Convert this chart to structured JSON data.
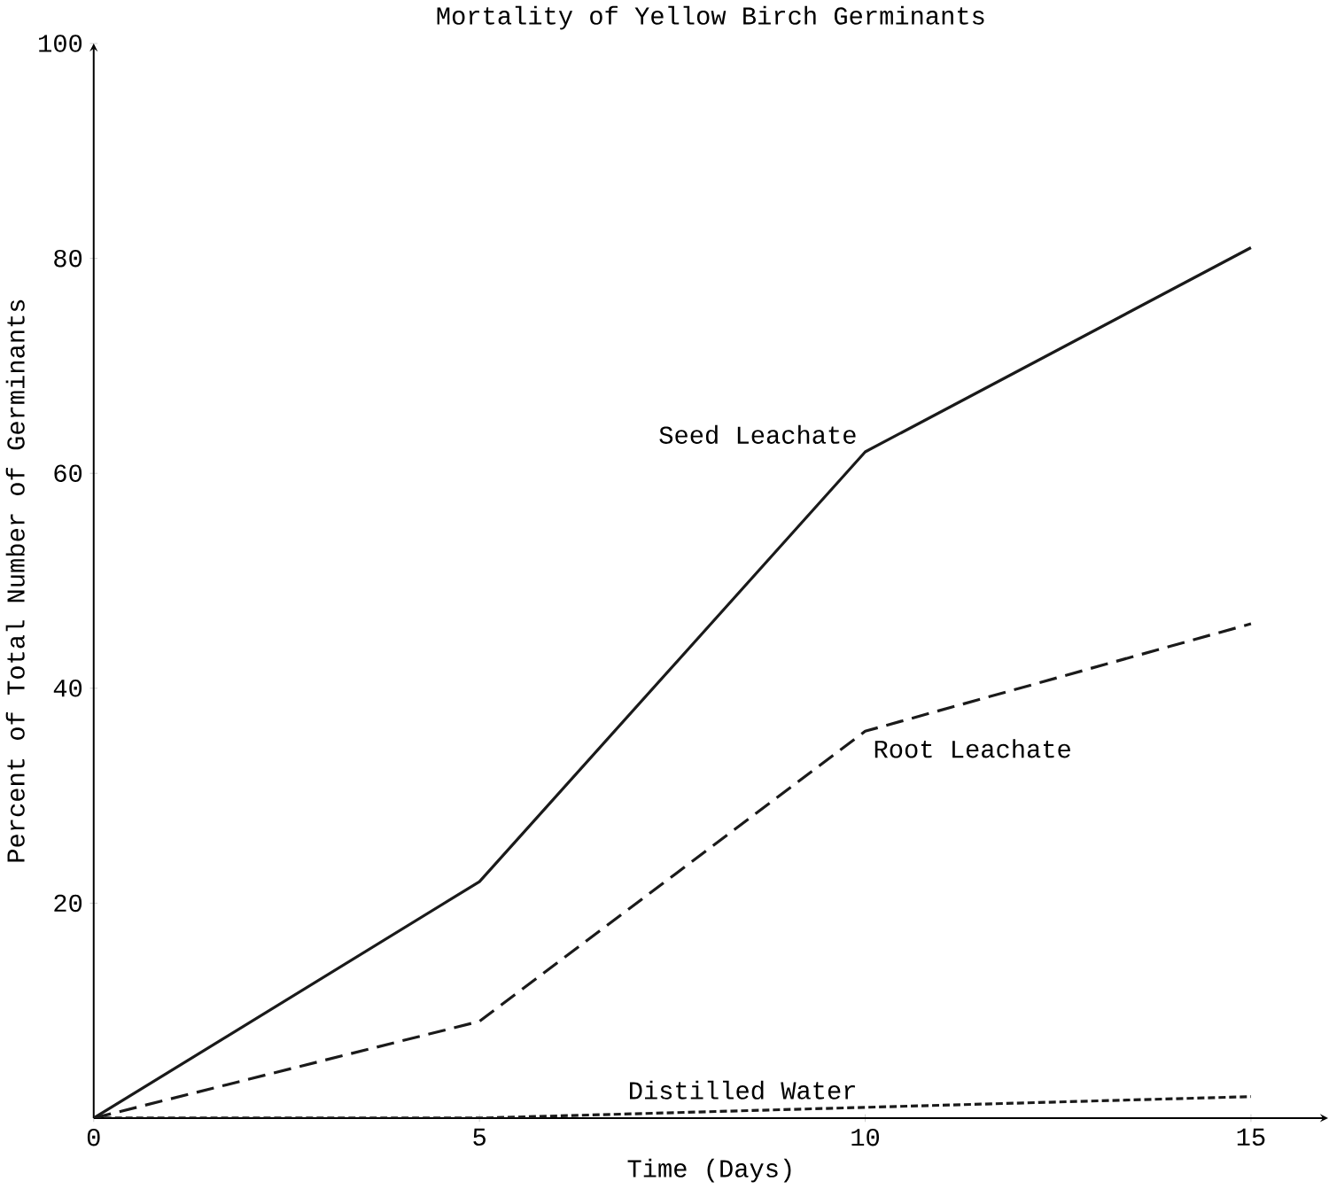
{
  "chart_data": {
    "type": "line",
    "title": "Mortality of Yellow Birch Germinants",
    "xlabel": "Time (Days)",
    "ylabel": "Percent of Total Number of Germinants",
    "x": [
      0,
      5,
      10,
      15
    ],
    "series": [
      {
        "name": "Seed Leachate",
        "color": "#1a1a1a",
        "line_style": "solid",
        "values": [
          0,
          22,
          62,
          81
        ]
      },
      {
        "name": "Root Leachate",
        "color": "#1a1a1a",
        "line_style": "dashed",
        "values": [
          0,
          9,
          36,
          46
        ]
      },
      {
        "name": "Distilled Water",
        "color": "#1a1a1a",
        "line_style": "dotted",
        "values": [
          0,
          0,
          1,
          2
        ]
      }
    ],
    "xlim": [
      0,
      16
    ],
    "xticks": [
      0,
      5,
      10,
      15
    ],
    "ylim": [
      0,
      100
    ],
    "yticks": [
      20,
      40,
      60,
      80,
      100
    ],
    "grid": false,
    "legend": false,
    "marker": "none"
  }
}
